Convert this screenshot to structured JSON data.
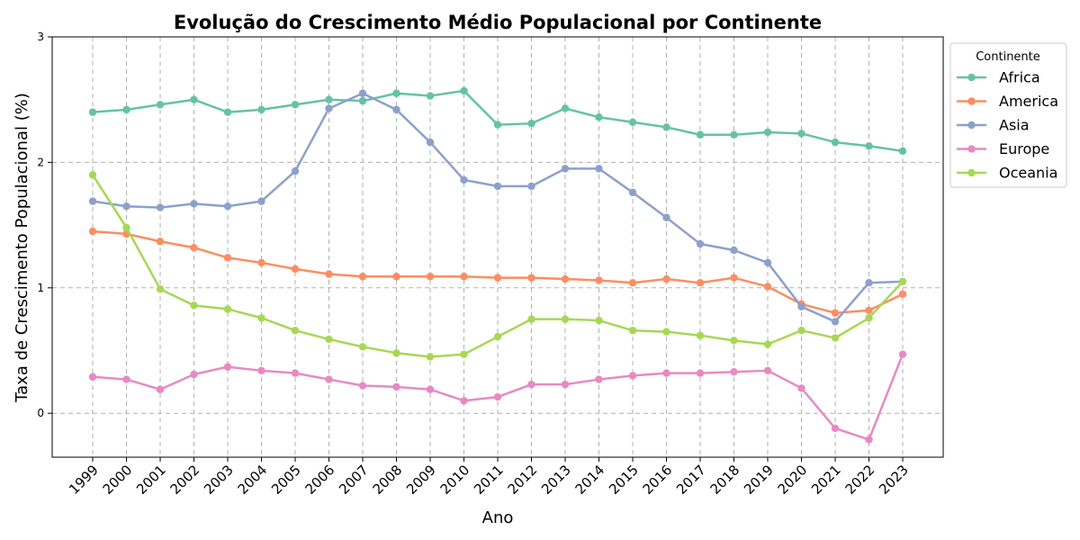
{
  "colors": {
    "Africa": "#66c2a5",
    "America": "#fc8d62",
    "Asia": "#8da0cb",
    "Europe": "#e78ac3",
    "Oceania": "#a6d854"
  },
  "chart_data": {
    "type": "line",
    "title": "Evolução do Crescimento Médio Populacional por Continente",
    "xlabel": "Ano",
    "ylabel": "Taxa de Crescimento Populacional (%)",
    "ylim": [
      -0.35,
      3.0
    ],
    "yticks": [
      0,
      1,
      2,
      3
    ],
    "grid": true,
    "legend": {
      "title": "Continente",
      "position": "top-right"
    },
    "x": [
      "1999",
      "2000",
      "2001",
      "2002",
      "2003",
      "2004",
      "2005",
      "2006",
      "2007",
      "2008",
      "2009",
      "2010",
      "2011",
      "2012",
      "2013",
      "2014",
      "2015",
      "2016",
      "2017",
      "2018",
      "2019",
      "2020",
      "2021",
      "2022",
      "2023"
    ],
    "series": [
      {
        "name": "Africa",
        "values": [
          2.4,
          2.42,
          2.46,
          2.5,
          2.4,
          2.42,
          2.46,
          2.5,
          2.49,
          2.55,
          2.53,
          2.57,
          2.3,
          2.31,
          2.43,
          2.36,
          2.32,
          2.28,
          2.22,
          2.22,
          2.24,
          2.23,
          2.16,
          2.13,
          2.09
        ]
      },
      {
        "name": "America",
        "values": [
          1.45,
          1.43,
          1.37,
          1.32,
          1.24,
          1.2,
          1.15,
          1.11,
          1.09,
          1.09,
          1.09,
          1.09,
          1.08,
          1.08,
          1.07,
          1.06,
          1.04,
          1.07,
          1.04,
          1.08,
          1.01,
          0.87,
          0.8,
          0.82,
          0.95
        ]
      },
      {
        "name": "Asia",
        "values": [
          1.69,
          1.65,
          1.64,
          1.67,
          1.65,
          1.69,
          1.93,
          2.43,
          2.55,
          2.42,
          2.16,
          1.86,
          1.81,
          1.81,
          1.95,
          1.95,
          1.76,
          1.56,
          1.35,
          1.3,
          1.2,
          0.85,
          0.73,
          1.04,
          1.05
        ]
      },
      {
        "name": "Europe",
        "values": [
          0.29,
          0.27,
          0.19,
          0.31,
          0.37,
          0.34,
          0.32,
          0.27,
          0.22,
          0.21,
          0.19,
          0.1,
          0.13,
          0.23,
          0.23,
          0.27,
          0.3,
          0.32,
          0.32,
          0.33,
          0.34,
          0.2,
          -0.12,
          -0.21,
          0.47
        ]
      },
      {
        "name": "Oceania",
        "values": [
          1.9,
          1.48,
          0.99,
          0.86,
          0.83,
          0.76,
          0.66,
          0.59,
          0.53,
          0.48,
          0.45,
          0.47,
          0.61,
          0.75,
          0.75,
          0.74,
          0.66,
          0.65,
          0.62,
          0.58,
          0.55,
          0.66,
          0.6,
          0.76,
          1.05
        ]
      }
    ]
  }
}
